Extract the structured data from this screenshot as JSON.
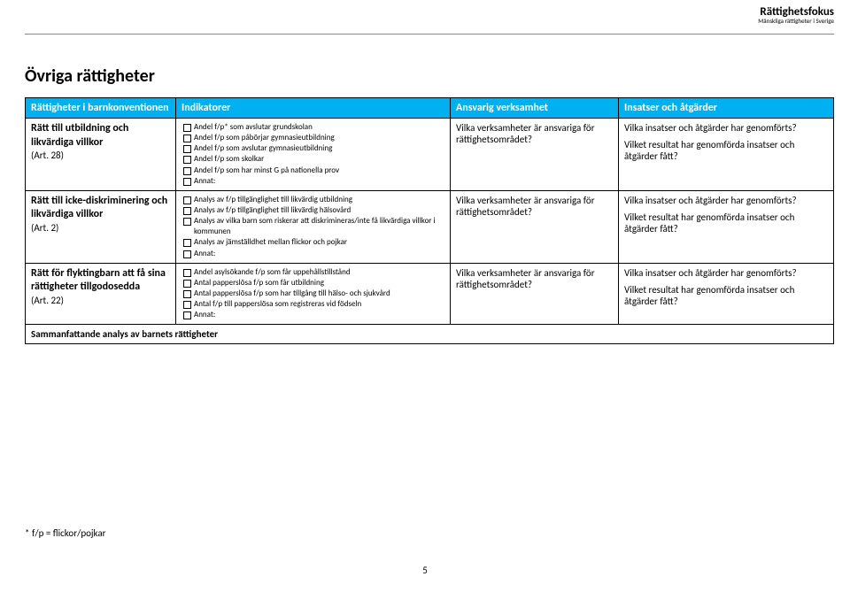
{
  "brand": {
    "name": "Rättighetsfokus",
    "tagline": "Mänskliga rättigheter i Sverige"
  },
  "title": "Övriga rättigheter",
  "columns": {
    "c1": "Rättigheter i barnkonventionen",
    "c2": "Indikatorer",
    "c3": "Ansvarig verksamhet",
    "c4": "Insatser och åtgärder"
  },
  "rows": [
    {
      "right_title": "Rätt till utbildning och likvärdiga villkor",
      "right_art": "(Art. 28)",
      "indicators": [
        "Andel f/p* som avslutar grundskolan",
        "Andel f/p som påbörjar gymnasieutbildning",
        "Andel f/p som avslutar gymnasieutbildning",
        "Andel f/p som skolkar",
        "Andel f/p som har minst G på nationella prov",
        "Annat:"
      ],
      "responsible": "Vilka verksamheter är ansvariga för rättighetsområdet?",
      "insatser": [
        "Vilka insatser och åtgärder har genomförts?",
        "Vilket resultat har genomförda insatser och åtgärder fått?"
      ]
    },
    {
      "right_title": "Rätt till icke-diskriminering och likvärdiga villkor",
      "right_art": "(Art. 2)",
      "indicators": [
        "Analys av f/p tillgänglighet till likvärdig utbildning",
        "Analys av f/p tillgänglighet till likvärdig hälsovård",
        "Analys av vilka barn som riskerar att diskrimineras/inte få likvärdiga villkor i kommunen",
        "Analys av jämställdhet mellan flickor och pojkar",
        "Annat:"
      ],
      "responsible": "Vilka verksamheter är ansvariga för rättighetsområdet?",
      "insatser": [
        "Vilka insatser och åtgärder har genomförts?",
        "Vilket resultat har genomförda insatser och åtgärder fått?"
      ]
    },
    {
      "right_title": "Rätt för flyktingbarn att få sina rättigheter tillgodosedda",
      "right_art": "(Art. 22)",
      "indicators": [
        "Andel asylsökande f/p som får uppehållstillstånd",
        "Antal papperslösa f/p som får utbildning",
        "Antal papperslösa f/p som har tillgång till hälso- och sjukvård",
        "Antal f/p till papperslösa som registreras vid födseln",
        "Annat:"
      ],
      "responsible": "Vilka verksamheter är ansvariga för rättighetsområdet?",
      "insatser": [
        "Vilka insatser och åtgärder har genomförts?",
        "Vilket resultat har genomförda insatser och åtgärder fått?"
      ]
    }
  ],
  "summary": "Sammanfattande analys av barnets rättigheter",
  "footnote": "* f/p = flickor/pojkar",
  "page_number": "5",
  "colors": {
    "header_bg": "#00b0f0",
    "header_fg": "#ffffff",
    "border": "#000000"
  }
}
